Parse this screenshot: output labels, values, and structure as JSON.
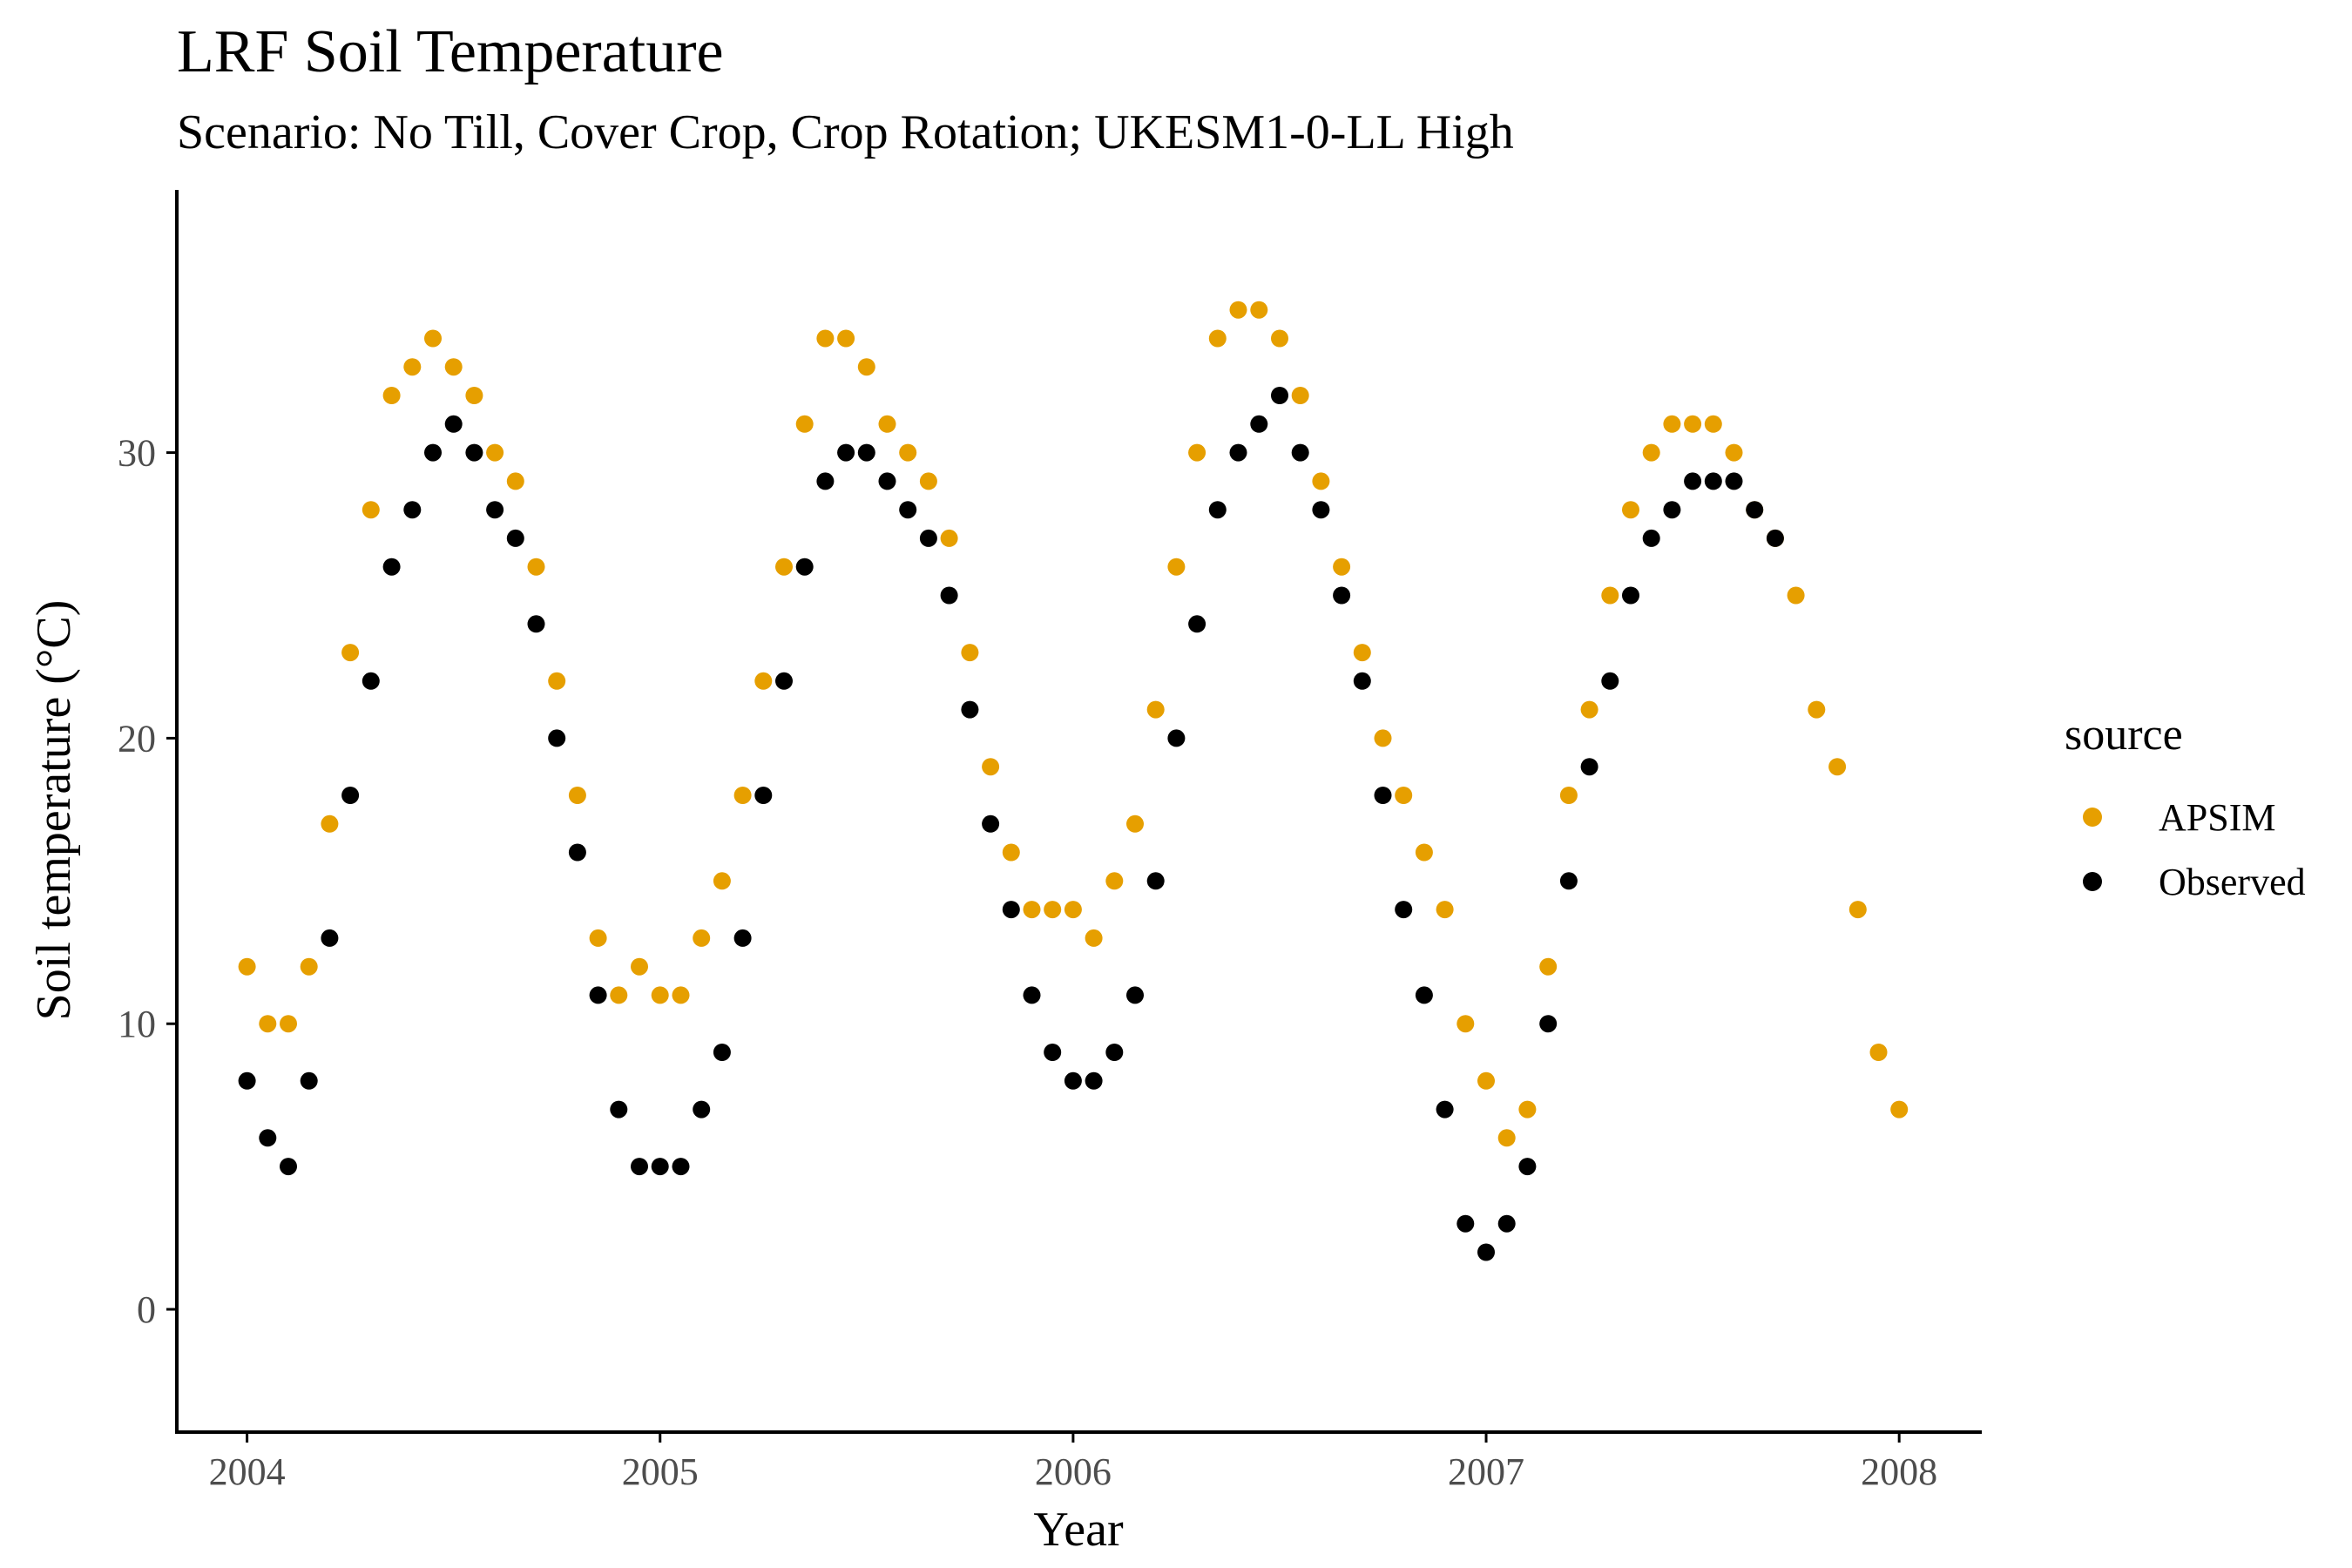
{
  "chart_data": {
    "type": "scatter",
    "title": "LRF Soil Temperature",
    "subtitle": "Scenario: No Till, Cover Crop, Crop Rotation; UKESM1-0-LL High",
    "xlabel": "Year",
    "ylabel": "Soil temperature (°C)",
    "x_ticks": [
      "2004",
      "2005",
      "2006",
      "2007",
      "2008"
    ],
    "y_ticks": [
      "0",
      "10",
      "20",
      "30"
    ],
    "xlim": [
      2003.83,
      2008.2
    ],
    "ylim": [
      -4.3,
      39.2
    ],
    "grid": false,
    "legend": {
      "title": "source",
      "position": "right"
    },
    "series": [
      {
        "name": "APSIM",
        "color": "#E69F00",
        "x": [
          2004.0,
          2004.05,
          2004.1,
          2004.15,
          2004.2,
          2004.25,
          2004.3,
          2004.35,
          2004.4,
          2004.45,
          2004.5,
          2004.55,
          2004.6,
          2004.65,
          2004.7,
          2004.75,
          2004.8,
          2004.85,
          2004.9,
          2004.95,
          2005.0,
          2005.05,
          2005.1,
          2005.15,
          2005.2,
          2005.25,
          2005.3,
          2005.35,
          2005.4,
          2005.45,
          2005.5,
          2005.55,
          2005.6,
          2005.65,
          2005.7,
          2005.75,
          2005.8,
          2005.85,
          2005.9,
          2005.95,
          2006.0,
          2006.05,
          2006.1,
          2006.15,
          2006.2,
          2006.25,
          2006.3,
          2006.35,
          2006.4,
          2006.45,
          2006.5,
          2006.55,
          2006.6,
          2006.65,
          2006.7,
          2006.75,
          2006.8,
          2006.85,
          2006.9,
          2006.95,
          2007.0,
          2007.05,
          2007.1,
          2007.15,
          2007.2,
          2007.25,
          2007.3,
          2007.35,
          2007.4,
          2007.45,
          2007.5,
          2007.55,
          2007.6,
          2007.65,
          2007.7,
          2007.75,
          2007.8,
          2007.85,
          2007.9,
          2007.95,
          2008.0
        ],
        "y": [
          12,
          10,
          10,
          12,
          17,
          23,
          28,
          32,
          33,
          34,
          33,
          32,
          30,
          29,
          26,
          22,
          18,
          13,
          11,
          12,
          11,
          11,
          13,
          15,
          18,
          22,
          26,
          31,
          34,
          34,
          33,
          31,
          30,
          29,
          27,
          23,
          19,
          16,
          14,
          14,
          14,
          13,
          15,
          17,
          21,
          26,
          30,
          34,
          35,
          35,
          34,
          32,
          29,
          26,
          23,
          20,
          18,
          16,
          14,
          10,
          8,
          6,
          7,
          12,
          18,
          21,
          25,
          28,
          30,
          31,
          31,
          31,
          30,
          28,
          27,
          25,
          21,
          19,
          14,
          9,
          7
        ]
      },
      {
        "name": "Observed",
        "color": "#000000",
        "x": [
          2004.0,
          2004.05,
          2004.1,
          2004.15,
          2004.2,
          2004.25,
          2004.3,
          2004.35,
          2004.4,
          2004.45,
          2004.5,
          2004.55,
          2004.6,
          2004.65,
          2004.7,
          2004.75,
          2004.8,
          2004.85,
          2004.9,
          2004.95,
          2005.0,
          2005.05,
          2005.1,
          2005.15,
          2005.2,
          2005.25,
          2005.3,
          2005.35,
          2005.4,
          2005.45,
          2005.5,
          2005.55,
          2005.6,
          2005.65,
          2005.7,
          2005.75,
          2005.8,
          2005.85,
          2005.9,
          2005.95,
          2006.0,
          2006.05,
          2006.1,
          2006.15,
          2006.2,
          2006.25,
          2006.3,
          2006.35,
          2006.4,
          2006.45,
          2006.5,
          2006.55,
          2006.6,
          2006.65,
          2006.7,
          2006.75,
          2006.8,
          2006.85,
          2006.9,
          2006.95,
          2007.0,
          2007.05,
          2007.1,
          2007.15,
          2007.2,
          2007.25,
          2007.3,
          2007.35,
          2007.4,
          2007.45,
          2007.5,
          2007.55,
          2007.6,
          2007.65,
          2007.7
        ],
        "y": [
          8,
          6,
          5,
          8,
          13,
          18,
          22,
          26,
          28,
          30,
          31,
          30,
          28,
          27,
          24,
          20,
          16,
          11,
          7,
          5,
          5,
          5,
          7,
          9,
          13,
          18,
          22,
          26,
          29,
          30,
          30,
          29,
          28,
          27,
          25,
          21,
          17,
          14,
          11,
          9,
          8,
          8,
          9,
          11,
          15,
          20,
          24,
          28,
          30,
          31,
          32,
          30,
          28,
          25,
          22,
          18,
          14,
          11,
          7,
          3,
          2,
          3,
          5,
          10,
          15,
          19,
          22,
          25,
          27,
          28,
          29,
          29,
          29,
          28,
          27
        ]
      }
    ]
  }
}
